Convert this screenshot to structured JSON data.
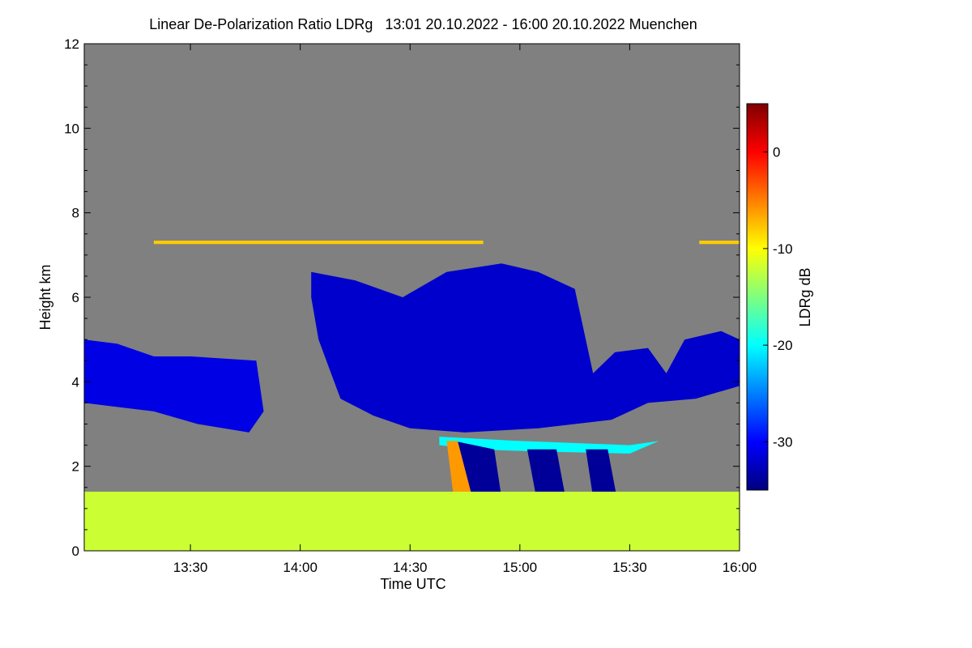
{
  "chart_data": {
    "type": "heatmap",
    "title": "Linear De-Polarization Ratio LDRg   13:01 20.10.2022 - 16:00 20.10.2022 Muenchen",
    "xlabel": "Time UTC",
    "ylabel": "Height km",
    "colorbar_label": "LDRg dB",
    "x_ticks": [
      "13:30",
      "14:00",
      "14:30",
      "15:00",
      "15:30",
      "16:00"
    ],
    "x_tick_values_min": [
      810,
      840,
      870,
      900,
      930,
      960
    ],
    "xlim_min": [
      781,
      960
    ],
    "y_ticks": [
      0,
      2,
      4,
      6,
      8,
      10,
      12
    ],
    "ylim": [
      0,
      12
    ],
    "colorbar_ticks": [
      0,
      -10,
      -20,
      -30
    ],
    "colorbar_range": [
      -35,
      5
    ],
    "background_color": "#808080",
    "colormap": [
      "#00007f",
      "#0000ff",
      "#007fff",
      "#00ffff",
      "#7fff7f",
      "#ffff00",
      "#ff7f00",
      "#ff0000",
      "#7f0000"
    ],
    "features": [
      {
        "label": "cirrus-cloud-band",
        "ldr_db": -31,
        "area": [
          [
            781,
            5.0
          ],
          [
            790,
            4.9
          ],
          [
            800,
            4.6
          ],
          [
            810,
            4.6
          ],
          [
            828,
            4.5
          ],
          [
            830,
            3.3
          ],
          [
            826,
            2.8
          ],
          [
            812,
            3.0
          ],
          [
            800,
            3.3
          ],
          [
            781,
            3.5
          ]
        ]
      },
      {
        "label": "cirrus-cloud-band",
        "ldr_db": -32,
        "area": [
          [
            843,
            6.6
          ],
          [
            855,
            6.4
          ],
          [
            868,
            6.0
          ],
          [
            880,
            6.6
          ],
          [
            895,
            6.8
          ],
          [
            905,
            6.6
          ],
          [
            915,
            6.2
          ],
          [
            920,
            4.2
          ],
          [
            926,
            4.7
          ],
          [
            935,
            4.8
          ],
          [
            940,
            4.2
          ],
          [
            945,
            5.0
          ],
          [
            955,
            5.2
          ],
          [
            960,
            5.0
          ],
          [
            960,
            3.9
          ],
          [
            948,
            3.6
          ],
          [
            935,
            3.5
          ],
          [
            925,
            3.1
          ],
          [
            905,
            2.9
          ],
          [
            885,
            2.8
          ],
          [
            870,
            2.9
          ],
          [
            860,
            3.2
          ],
          [
            851,
            3.6
          ],
          [
            848,
            4.3
          ],
          [
            845,
            5.0
          ],
          [
            843,
            6.0
          ]
        ]
      },
      {
        "label": "melting-layer",
        "ldr_db": -20,
        "area": [
          [
            878,
            2.7
          ],
          [
            900,
            2.6
          ],
          [
            930,
            2.5
          ],
          [
            938,
            2.6
          ],
          [
            930,
            2.3
          ],
          [
            905,
            2.35
          ],
          [
            888,
            2.4
          ],
          [
            878,
            2.5
          ]
        ]
      },
      {
        "label": "precipitation-fall-streak",
        "ldr_db": -34,
        "area": [
          [
            882,
            2.6
          ],
          [
            893,
            2.4
          ],
          [
            897,
            0.1
          ],
          [
            890,
            0.1
          ],
          [
            884,
            1.5
          ]
        ]
      },
      {
        "label": "precipitation-fall-streak",
        "ldr_db": -34,
        "area": [
          [
            902,
            2.4
          ],
          [
            910,
            2.4
          ],
          [
            915,
            0.1
          ],
          [
            907,
            0.1
          ]
        ]
      },
      {
        "label": "precipitation-fall-streak",
        "ldr_db": -34,
        "area": [
          [
            918,
            2.4
          ],
          [
            924,
            2.4
          ],
          [
            929,
            0.1
          ],
          [
            922,
            0.1
          ]
        ]
      },
      {
        "label": "depolarizing-streak",
        "ldr_db": -6,
        "area": [
          [
            880,
            2.6
          ],
          [
            883,
            2.6
          ],
          [
            889,
            0.6
          ],
          [
            891,
            0.2
          ],
          [
            887,
            0.2
          ],
          [
            882,
            1.2
          ]
        ]
      },
      {
        "label": "boundary-layer-aerosol",
        "ldr_db": -12,
        "area": [
          [
            781,
            1.4
          ],
          [
            960,
            1.4
          ],
          [
            960,
            0.0
          ],
          [
            781,
            0.0
          ]
        ]
      },
      {
        "label": "thin-layer-7.3km",
        "ldr_db": -8,
        "area": [
          [
            800,
            7.34
          ],
          [
            890,
            7.34
          ],
          [
            890,
            7.26
          ],
          [
            800,
            7.26
          ]
        ]
      },
      {
        "label": "thin-layer-7.3km",
        "ldr_db": -8,
        "area": [
          [
            949,
            7.34
          ],
          [
            960,
            7.34
          ],
          [
            960,
            7.26
          ],
          [
            949,
            7.26
          ]
        ]
      }
    ]
  }
}
